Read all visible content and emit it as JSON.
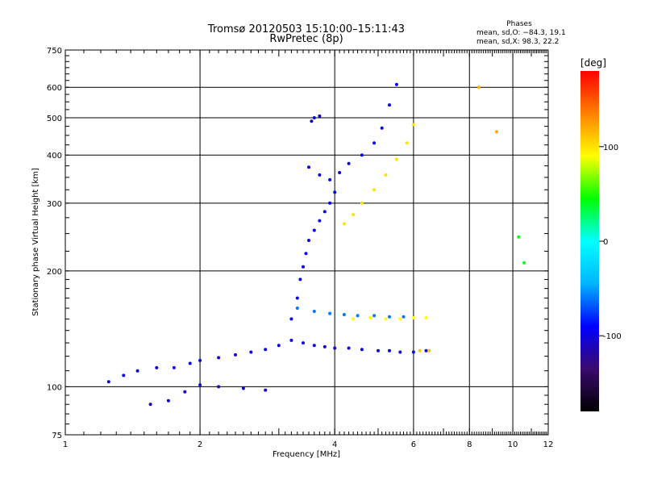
{
  "chart_data": {
    "type": "scatter",
    "title": "Tromsø 20120503 15:10:00–15:11:43",
    "subtitle": "RwPretec (8p)",
    "xlabel": "Frequency [MHz]",
    "ylabel": "Stationary phase Virtual Height [km]",
    "x_scale": "log",
    "y_scale": "log",
    "xlim": [
      1,
      12
    ],
    "ylim": [
      75,
      750
    ],
    "x_ticks": [
      1,
      2,
      4,
      6,
      8,
      10,
      12
    ],
    "y_ticks": [
      75,
      100,
      200,
      300,
      400,
      500,
      600,
      750
    ],
    "grid": true,
    "phases_box": {
      "heading": "Phases",
      "line_o": "mean, sd,O: −84.3, 19.1",
      "line_x": "mean, sd,X:  98.3, 22.2"
    },
    "colorbar": {
      "label": "[deg]",
      "range": [
        -180,
        180
      ],
      "ticks": [
        100,
        0,
        -100
      ],
      "colors": [
        "#000000",
        "#3a0a6e",
        "#0000ff",
        "#00b4ff",
        "#00ffff",
        "#00ff00",
        "#ffff00",
        "#ff8000",
        "#ff0000"
      ]
    },
    "series": [
      {
        "x": [
          1.25,
          1.35,
          1.45,
          1.6,
          1.75,
          1.9,
          2.0,
          2.2,
          2.4,
          2.6,
          2.8,
          3.0,
          3.2,
          3.4,
          3.6,
          3.8,
          4.0,
          4.3,
          4.6,
          5.0,
          5.3,
          5.6,
          6.0,
          6.4
        ],
        "y": [
          103,
          107,
          110,
          112,
          112,
          115,
          117,
          119,
          121,
          123,
          125,
          128,
          132,
          130,
          128,
          127,
          126,
          126,
          125,
          124,
          124,
          123,
          123,
          124
        ],
        "phase": -100
      },
      {
        "x": [
          1.55,
          1.7,
          1.85,
          2.0,
          2.2,
          2.5,
          2.8
        ],
        "y": [
          90,
          92,
          97,
          101,
          100,
          99,
          98
        ],
        "phase": -105
      },
      {
        "x": [
          3.2,
          3.3,
          3.35,
          3.4,
          3.45,
          3.5,
          3.6,
          3.7,
          3.8,
          3.9,
          4.0
        ],
        "y": [
          150,
          170,
          190,
          205,
          222,
          240,
          255,
          270,
          285,
          300,
          320
        ],
        "phase": -95
      },
      {
        "x": [
          3.5,
          3.7,
          3.9,
          4.1,
          4.3,
          4.6,
          4.9,
          5.1,
          5.3,
          5.5
        ],
        "y": [
          372,
          355,
          345,
          360,
          380,
          400,
          430,
          470,
          540,
          610
        ],
        "phase": -95
      },
      {
        "x": [
          3.55,
          3.6,
          3.7
        ],
        "y": [
          490,
          500,
          505
        ],
        "phase": -100
      },
      {
        "x": [
          4.2,
          4.4,
          4.6,
          4.9,
          5.2,
          5.5,
          5.8,
          6.0
        ],
        "y": [
          265,
          280,
          300,
          325,
          355,
          390,
          430,
          480
        ],
        "phase": 100
      },
      {
        "x": [
          3.3,
          3.6,
          3.9,
          4.2,
          4.5,
          4.9,
          5.3,
          5.7
        ],
        "y": [
          160,
          157,
          155,
          154,
          153,
          153,
          152,
          152
        ],
        "phase": -60
      },
      {
        "x": [
          4.4,
          4.8,
          5.2,
          5.6,
          6.0,
          6.4
        ],
        "y": [
          150,
          151,
          150,
          150,
          151,
          151
        ],
        "phase": 90
      },
      {
        "x": [
          6.2,
          6.5
        ],
        "y": [
          124,
          124
        ],
        "phase": 110
      },
      {
        "x": [
          8.4,
          9.2
        ],
        "y": [
          600,
          460
        ],
        "phase": 120
      },
      {
        "x": [
          10.3,
          10.6
        ],
        "y": [
          245,
          210
        ],
        "phase": 40
      }
    ]
  }
}
